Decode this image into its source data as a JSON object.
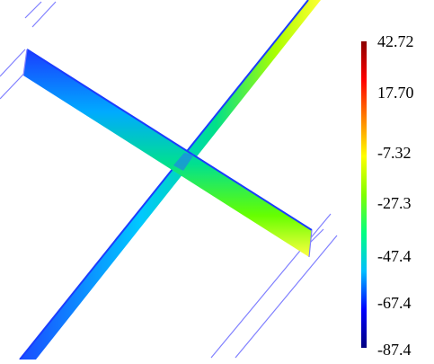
{
  "legend": {
    "ticks": [
      "42.72",
      "17.70",
      "-7.32",
      "-27.3",
      "-47.4",
      "-67.4",
      "-87.4"
    ],
    "colors": [
      "#000080",
      "#0000ff",
      "#00bfff",
      "#00ff80",
      "#80ff00",
      "#ffff00",
      "#ff8000",
      "#ff0000",
      "#8b0000"
    ]
  }
}
